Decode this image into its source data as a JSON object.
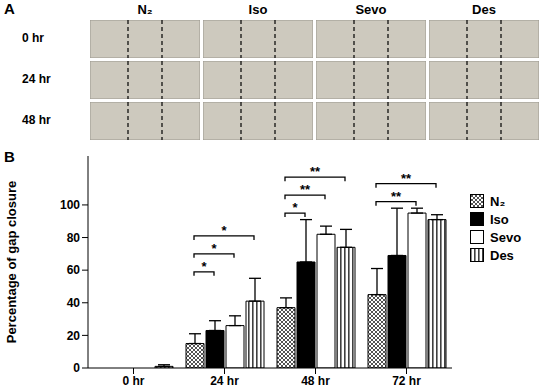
{
  "figure_labels": [
    "A",
    "B"
  ],
  "micrographs": {
    "columns": [
      "N₂",
      "Iso",
      "Sevo",
      "Des"
    ],
    "rows": [
      "0 hr",
      "24 hr",
      "48 hr"
    ]
  },
  "chart_data": {
    "type": "bar",
    "categories": [
      "0 hr",
      "24 hr",
      "48 hr",
      "72 hr"
    ],
    "y_label": "Percentage of gap closure",
    "ylim": [
      0,
      130
    ],
    "yticks": [
      0,
      20,
      40,
      60,
      80,
      100
    ],
    "legend": "right",
    "series": [
      {
        "name": "N₂",
        "color": "#404040",
        "values": [
          0,
          15,
          37,
          45
        ],
        "errors": [
          0,
          6,
          6,
          16
        ]
      },
      {
        "name": "Iso",
        "color": "#000000",
        "values": [
          0,
          23,
          65,
          69
        ],
        "errors": [
          0,
          6,
          26,
          29
        ]
      },
      {
        "name": "Sevo",
        "color": "#ffffff",
        "values": [
          0,
          26,
          82,
          95
        ],
        "errors": [
          0,
          6,
          5,
          3
        ]
      },
      {
        "name": "Des",
        "color": "#404040",
        "values": [
          1,
          41,
          74,
          91
        ],
        "errors": [
          1,
          14,
          11,
          3
        ]
      }
    ],
    "significance": [
      {
        "category": "24 hr",
        "from": "N₂",
        "to": "Iso",
        "label": "*"
      },
      {
        "category": "24 hr",
        "from": "N₂",
        "to": "Sevo",
        "label": "*"
      },
      {
        "category": "24 hr",
        "from": "N₂",
        "to": "Des",
        "label": "*"
      },
      {
        "category": "48 hr",
        "from": "N₂",
        "to": "Iso",
        "label": "*"
      },
      {
        "category": "48 hr",
        "from": "N₂",
        "to": "Sevo",
        "label": "**"
      },
      {
        "category": "48 hr",
        "from": "N₂",
        "to": "Des",
        "label": "**"
      },
      {
        "category": "72 hr",
        "from": "N₂",
        "to": "Sevo",
        "label": "**"
      },
      {
        "category": "72 hr",
        "from": "N₂",
        "to": "Des",
        "label": "**"
      }
    ]
  }
}
